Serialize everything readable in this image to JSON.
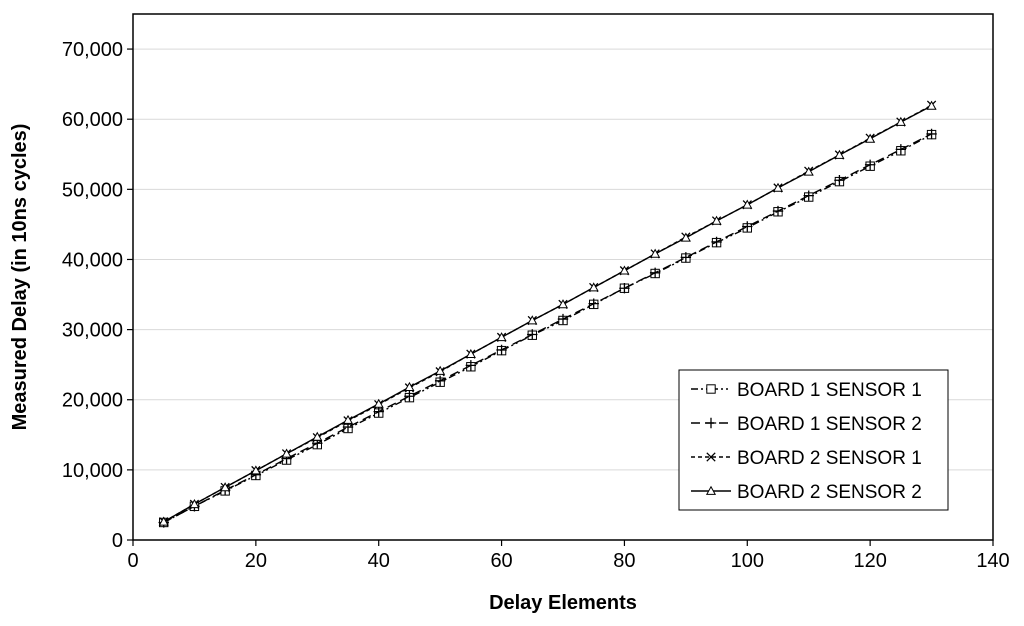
{
  "chart_data": {
    "type": "line",
    "title": "",
    "xlabel": "Delay Elements",
    "ylabel": "Measured Delay (in 10ns cycles)",
    "xlim": [
      0,
      140
    ],
    "ylim": [
      0,
      75000
    ],
    "x_ticks": [
      0,
      20,
      40,
      60,
      80,
      100,
      120,
      140
    ],
    "x_tick_labels": [
      "0",
      "20",
      "40",
      "60",
      "80",
      "100",
      "120",
      "140"
    ],
    "y_ticks": [
      0,
      10000,
      20000,
      30000,
      40000,
      50000,
      60000,
      70000
    ],
    "y_tick_labels": [
      "0",
      "10,000",
      "20,000",
      "30,000",
      "40,000",
      "50,000",
      "60,000",
      "70,000"
    ],
    "grid": "horizontal major gridlines",
    "legend_position": "bottom-right",
    "x": [
      5,
      10,
      15,
      20,
      25,
      30,
      35,
      40,
      45,
      50,
      55,
      60,
      65,
      70,
      75,
      80,
      85,
      90,
      95,
      100,
      105,
      110,
      115,
      120,
      125,
      130
    ],
    "series": [
      {
        "name": "BOARD 1 SENSOR 1",
        "line_style": "dash-dot-dot",
        "marker": "square",
        "values": [
          2500,
          4800,
          7000,
          9200,
          11400,
          13600,
          15900,
          18100,
          20300,
          22500,
          24700,
          27000,
          29200,
          31300,
          33600,
          35900,
          38000,
          40200,
          42400,
          44500,
          46800,
          48900,
          51100,
          53300,
          55500,
          57800
        ]
      },
      {
        "name": "BOARD 1 SENSOR 2",
        "line_style": "long-dash",
        "marker": "plus",
        "values": [
          2500,
          4800,
          7100,
          9300,
          11600,
          13800,
          16100,
          18300,
          20500,
          22700,
          24900,
          27100,
          29300,
          31500,
          33700,
          35900,
          38100,
          40300,
          42500,
          44700,
          46900,
          49100,
          51300,
          53500,
          55700,
          57900
        ]
      },
      {
        "name": "BOARD 2 SENSOR 1",
        "line_style": "short-dash",
        "marker": "x",
        "values": [
          2600,
          5100,
          7500,
          9900,
          12300,
          14600,
          17000,
          19300,
          21700,
          24000,
          26500,
          28900,
          31300,
          33600,
          36000,
          38400,
          40800,
          43200,
          45500,
          47800,
          50200,
          52600,
          54900,
          57300,
          59600,
          62000
        ]
      },
      {
        "name": "BOARD 2 SENSOR 2",
        "line_style": "solid",
        "marker": "triangle",
        "values": [
          2600,
          5100,
          7500,
          9900,
          12300,
          14700,
          17100,
          19400,
          21800,
          24100,
          26500,
          28900,
          31300,
          33600,
          36000,
          38400,
          40800,
          43100,
          45500,
          47800,
          50200,
          52500,
          54900,
          57200,
          59600,
          61900
        ]
      }
    ]
  }
}
